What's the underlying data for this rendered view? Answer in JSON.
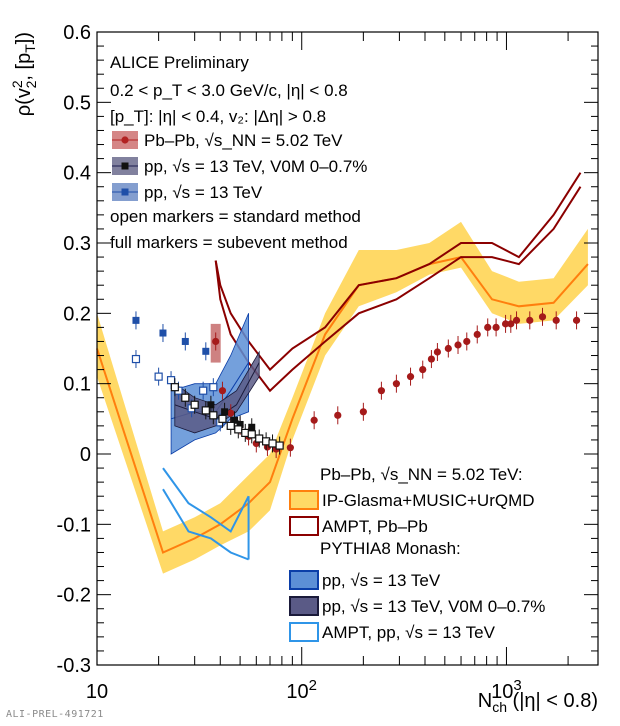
{
  "footer_id": "ALI-PREL-491721",
  "chart_data": {
    "type": "line",
    "xscale": "log",
    "xlim": [
      10,
      2800
    ],
    "ylim": [
      -0.3,
      0.6
    ],
    "x_ticks": [
      {
        "value": 10,
        "label": "10"
      },
      {
        "value": 100,
        "label": "10",
        "sup": "2"
      },
      {
        "value": 1000,
        "label": "10",
        "sup": "3"
      }
    ],
    "y_ticks": [
      -0.3,
      -0.2,
      -0.1,
      0,
      0.1,
      0.2,
      0.3,
      0.4,
      0.5,
      0.6
    ],
    "xlabel": {
      "main": "N",
      "sub": "ch",
      "rest": " (|η| < 0.8)"
    },
    "ylabel": {
      "pre": "ρ(v",
      "sup": "2",
      "sub": "2",
      "mid": ", [p",
      "sub2": "T",
      "post": "])"
    },
    "text_block": {
      "line1": "ALICE Preliminary",
      "line2": "0.2 < p_T < 3.0 GeV/c, |η| < 0.8",
      "line3": "[p_T]: |η| < 0.4, v₂: |Δη| > 0.8",
      "line4": "open markers = standard method",
      "line5": "full markers = subevent method"
    },
    "legend_top": [
      {
        "label": "Pb–Pb, √s_NN = 5.02 TeV",
        "color": "#b22222"
      },
      {
        "label": "pp, √s = 13 TeV, V0M 0–0.7%",
        "color": "#1a1a4e"
      },
      {
        "label": "pp, √s = 13 TeV",
        "color": "#1f4fa8"
      }
    ],
    "legend_bottom": {
      "header1": "Pb–Pb, √s_NN = 5.02 TeV:",
      "header2": "PYTHIA8 Monash:",
      "entries": [
        {
          "label": "IP-Glasma+MUSIC+UrQMD",
          "color": "#ff7f0e",
          "fill": "#ffd966",
          "group": 1
        },
        {
          "label": "AMPT, Pb–Pb",
          "color": "#8b0000",
          "fill": "none",
          "group": 1
        },
        {
          "label": "pp, √s = 13 TeV",
          "color": "#0b3ea8",
          "fill": "#5c8fd6",
          "group": 2
        },
        {
          "label": "pp, √s = 13 TeV, V0M 0–0.7%",
          "color": "#1a1a3a",
          "fill": "#5a5a86",
          "group": 2
        },
        {
          "label": "AMPT, pp, √s = 13 TeV",
          "color": "#2f95e8",
          "fill": "none",
          "group": 2
        }
      ]
    },
    "series": [
      {
        "id": "pbpb_data",
        "marker": "circle",
        "color": "#a51a1a",
        "x": [
          38,
          41,
          45,
          50,
          55,
          60,
          68,
          75,
          88,
          115,
          150,
          200,
          245,
          290,
          340,
          390,
          430,
          460,
          520,
          580,
          640,
          720,
          810,
          890,
          990,
          1050,
          1120,
          1300,
          1500,
          1750,
          2200
        ],
        "y": [
          0.16,
          0.09,
          0.058,
          0.04,
          0.025,
          0.015,
          0.01,
          0.007,
          0.009,
          0.048,
          0.055,
          0.06,
          0.09,
          0.1,
          0.11,
          0.12,
          0.135,
          0.145,
          0.15,
          0.155,
          0.16,
          0.17,
          0.18,
          0.18,
          0.185,
          0.185,
          0.19,
          0.19,
          0.195,
          0.19,
          0.19
        ],
        "sys_x": [
          38
        ],
        "sys_y": [
          [
            0.13,
            0.185
          ]
        ]
      },
      {
        "id": "pp_hm_full",
        "marker": "square",
        "color": "#111111",
        "x": [
          36,
          42,
          47,
          50,
          57
        ],
        "y": [
          0.07,
          0.06,
          0.048,
          0.042,
          0.038
        ]
      },
      {
        "id": "pp_full",
        "marker": "square",
        "color": "#1f4fa8",
        "x": [
          15.5,
          21,
          27,
          34
        ],
        "y": [
          0.19,
          0.172,
          0.16,
          0.146
        ]
      },
      {
        "id": "pp_open",
        "marker": "open-square",
        "color": "#1f4fa8",
        "x": [
          15.5,
          20,
          23,
          25,
          29,
          33,
          37,
          40
        ],
        "y": [
          0.135,
          0.11,
          0.105,
          0.09,
          0.065,
          0.09,
          0.095,
          0.045
        ]
      },
      {
        "id": "pp_hm_open",
        "marker": "open-square",
        "color": "#111111",
        "x": [
          24,
          27,
          30,
          34,
          37,
          41,
          45,
          49,
          53,
          57,
          62,
          67,
          72,
          78
        ],
        "y": [
          0.095,
          0.08,
          0.07,
          0.062,
          0.055,
          0.05,
          0.04,
          0.035,
          0.03,
          0.028,
          0.022,
          0.018,
          0.015,
          0.012
        ]
      }
    ],
    "models": [
      {
        "id": "ipglasma",
        "type": "band",
        "line_color": "#ff7f0e",
        "fill": "#ffd966",
        "x": [
          10,
          21,
          30,
          40,
          55,
          70,
          90,
          130,
          190,
          290,
          420,
          600,
          850,
          1150,
          1700,
          2500
        ],
        "y": [
          0.15,
          -0.14,
          -0.12,
          -0.1,
          -0.07,
          -0.04,
          0.05,
          0.17,
          0.24,
          0.25,
          0.27,
          0.28,
          0.22,
          0.21,
          0.215,
          0.27
        ],
        "y_lo": [
          0.11,
          -0.17,
          -0.15,
          -0.13,
          -0.11,
          -0.08,
          0.02,
          0.14,
          0.21,
          0.23,
          0.255,
          0.265,
          0.2,
          0.185,
          0.19,
          0.24
        ],
        "y_hi": [
          0.2,
          -0.11,
          -0.09,
          -0.07,
          -0.03,
          0.0,
          0.08,
          0.2,
          0.29,
          0.29,
          0.3,
          0.33,
          0.26,
          0.245,
          0.25,
          0.32
        ]
      },
      {
        "id": "ampt_pbpb_upper",
        "type": "line",
        "color": "#8b0000",
        "x": [
          38,
          40,
          45,
          55,
          70,
          90,
          130,
          190,
          290,
          420,
          600,
          850,
          1150,
          1700,
          2300
        ],
        "y": [
          0.275,
          0.24,
          0.2,
          0.16,
          0.12,
          0.15,
          0.18,
          0.24,
          0.25,
          0.27,
          0.3,
          0.3,
          0.28,
          0.34,
          0.4
        ]
      },
      {
        "id": "ampt_pbpb_lower",
        "type": "line",
        "color": "#8b0000",
        "x": [
          38,
          40,
          45,
          55,
          70,
          90,
          130,
          190,
          290,
          420,
          600,
          850,
          1150,
          1700,
          2300
        ],
        "y": [
          0.275,
          0.22,
          0.17,
          0.13,
          0.09,
          0.12,
          0.16,
          0.2,
          0.22,
          0.25,
          0.28,
          0.28,
          0.27,
          0.32,
          0.38
        ]
      },
      {
        "id": "pythia_pp",
        "type": "band",
        "line_color": "#0b3ea8",
        "fill": "#5c8fd6",
        "x": [
          23,
          30,
          38,
          45,
          55
        ],
        "y": [
          0.05,
          0.06,
          0.06,
          0.09,
          0.13
        ],
        "y_lo": [
          0.0,
          0.02,
          0.03,
          0.05,
          0.06
        ],
        "y_hi": [
          0.09,
          0.1,
          0.1,
          0.14,
          0.2
        ]
      },
      {
        "id": "pythia_pp_hm",
        "type": "band",
        "line_color": "#1a1a3a",
        "fill": "#5a5a86",
        "x": [
          24,
          30,
          38,
          48,
          62
        ],
        "y": [
          0.07,
          0.06,
          0.05,
          0.07,
          0.13
        ],
        "y_lo": [
          0.04,
          0.03,
          0.04,
          0.06,
          0.11
        ],
        "y_hi": [
          0.1,
          0.08,
          0.07,
          0.09,
          0.145
        ]
      },
      {
        "id": "ampt_pp",
        "type": "envelope",
        "color": "#2f95e8",
        "x": [
          21,
          28,
          36,
          45,
          55
        ],
        "y_lo": [
          -0.05,
          -0.11,
          -0.12,
          -0.14,
          -0.15
        ],
        "y_hi": [
          -0.02,
          -0.07,
          -0.09,
          -0.11,
          -0.06
        ]
      }
    ]
  }
}
